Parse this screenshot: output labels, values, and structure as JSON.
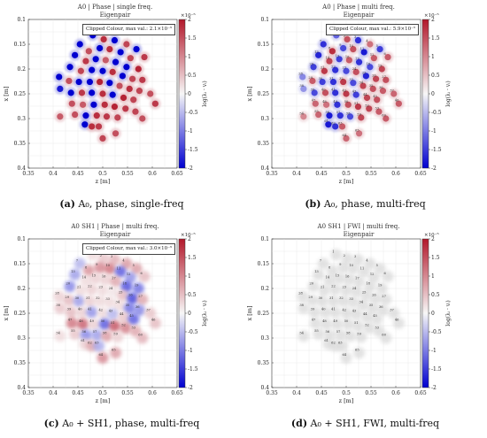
{
  "colors": {
    "high": "#b2182b",
    "mid": "#f7f7f7",
    "low": "#0000d0",
    "grid": "#e4e4e4"
  },
  "panels": [
    {
      "title1": "A0 | Phase | single freq.",
      "title2": "Eigenpair",
      "clipped": "Clipped Colour, max val.: 2.1×10⁻⁵",
      "caption_letter": "(a)",
      "caption_text": "A₀, phase, single-freq",
      "cbar_exponent": "×10⁻⁵",
      "cbar_label": "log(λᵢ · vᵢ)",
      "show_numbers": false
    },
    {
      "title1": "A0 | Phase | multi freq.",
      "title2": "Eigenpair",
      "clipped": "Clipped Colour, max val.: 5.9×10⁻⁵",
      "caption_letter": "(b)",
      "caption_text": "A₀, phase, multi-freq",
      "cbar_exponent": "×10⁻⁵",
      "cbar_label": "log(λᵢ · vᵢ)",
      "show_numbers": true
    },
    {
      "title1": "A0 SH1 | Phase | multi freq.",
      "title2": "Eigenpair",
      "clipped": "Clipped Colour, max val.: 3.0×10⁻⁵",
      "caption_letter": "(c)",
      "caption_text": "A₀ + SH1, phase, multi-freq",
      "cbar_exponent": "×10⁻⁵",
      "cbar_label": "log(λᵢ · vᵢ)",
      "show_numbers": true
    },
    {
      "title1": "A0 SH1 | FWI | multi freq.",
      "title2": "Eigenpair",
      "clipped": "",
      "caption_letter": "(d)",
      "caption_text": "A₀ + SH1, FWI, multi-freq",
      "cbar_exponent": "×10⁻⁵",
      "cbar_label": "log(λᵢ · vᵢ)",
      "show_numbers": true
    }
  ],
  "chart_data": {
    "type": "scatter",
    "xlabel": "z [m]",
    "ylabel": "x [m]",
    "xlim": [
      0.35,
      0.65
    ],
    "ylim": [
      0.1,
      0.4
    ],
    "x_ticks": [
      "0.35",
      "0.4",
      "0.45",
      "0.5",
      "0.55",
      "0.6",
      "0.65"
    ],
    "y_ticks": [
      "0.1",
      "0.15",
      "0.2",
      "0.25",
      "0.3",
      "0.35",
      "0.4"
    ],
    "cbar_ticks": [
      "2",
      "1.5",
      "1",
      "0.5",
      "0",
      "-0.5",
      "-1",
      "-1.5",
      "-2"
    ],
    "cbar_range": [
      -2,
      2
    ],
    "sensors": [
      {
        "id": "1",
        "z": 0.48,
        "x": 0.132
      },
      {
        "id": "2",
        "z": 0.502,
        "x": 0.14
      },
      {
        "id": "3",
        "z": 0.524,
        "x": 0.142
      },
      {
        "id": "4",
        "z": 0.548,
        "x": 0.15
      },
      {
        "id": "5",
        "z": 0.568,
        "x": 0.16
      },
      {
        "id": "6",
        "z": 0.584,
        "x": 0.176
      },
      {
        "id": "7",
        "z": 0.454,
        "x": 0.15
      },
      {
        "id": "8",
        "z": 0.472,
        "x": 0.164
      },
      {
        "id": "9",
        "z": 0.494,
        "x": 0.158
      },
      {
        "id": "10",
        "z": 0.514,
        "x": 0.16
      },
      {
        "id": "11",
        "z": 0.536,
        "x": 0.166
      },
      {
        "id": "12",
        "z": 0.556,
        "x": 0.178
      },
      {
        "id": "13",
        "z": 0.444,
        "x": 0.172
      },
      {
        "id": "14",
        "z": 0.466,
        "x": 0.184
      },
      {
        "id": "15",
        "z": 0.486,
        "x": 0.18
      },
      {
        "id": "16",
        "z": 0.506,
        "x": 0.182
      },
      {
        "id": "17",
        "z": 0.526,
        "x": 0.186
      },
      {
        "id": "18",
        "z": 0.548,
        "x": 0.196
      },
      {
        "id": "19",
        "z": 0.572,
        "x": 0.2
      },
      {
        "id": "20",
        "z": 0.434,
        "x": 0.196
      },
      {
        "id": "21",
        "z": 0.456,
        "x": 0.204
      },
      {
        "id": "22",
        "z": 0.478,
        "x": 0.202
      },
      {
        "id": "23",
        "z": 0.5,
        "x": 0.204
      },
      {
        "id": "24",
        "z": 0.52,
        "x": 0.206
      },
      {
        "id": "25",
        "z": 0.54,
        "x": 0.214
      },
      {
        "id": "26",
        "z": 0.56,
        "x": 0.22
      },
      {
        "id": "27",
        "z": 0.58,
        "x": 0.222
      },
      {
        "id": "28",
        "z": 0.412,
        "x": 0.216
      },
      {
        "id": "29",
        "z": 0.432,
        "x": 0.224
      },
      {
        "id": "30",
        "z": 0.452,
        "x": 0.226
      },
      {
        "id": "31",
        "z": 0.474,
        "x": 0.226
      },
      {
        "id": "32",
        "z": 0.494,
        "x": 0.226
      },
      {
        "id": "33",
        "z": 0.514,
        "x": 0.228
      },
      {
        "id": "34",
        "z": 0.534,
        "x": 0.234
      },
      {
        "id": "35",
        "z": 0.554,
        "x": 0.24
      },
      {
        "id": "36",
        "z": 0.574,
        "x": 0.244
      },
      {
        "id": "37",
        "z": 0.596,
        "x": 0.25
      },
      {
        "id": "38",
        "z": 0.414,
        "x": 0.24
      },
      {
        "id": "39",
        "z": 0.436,
        "x": 0.248
      },
      {
        "id": "40",
        "z": 0.458,
        "x": 0.248
      },
      {
        "id": "41",
        "z": 0.478,
        "x": 0.248
      },
      {
        "id": "42",
        "z": 0.5,
        "x": 0.25
      },
      {
        "id": "43",
        "z": 0.52,
        "x": 0.252
      },
      {
        "id": "44",
        "z": 0.542,
        "x": 0.258
      },
      {
        "id": "45",
        "z": 0.562,
        "x": 0.262
      },
      {
        "id": "46",
        "z": 0.606,
        "x": 0.27
      },
      {
        "id": "47",
        "z": 0.438,
        "x": 0.27
      },
      {
        "id": "48",
        "z": 0.46,
        "x": 0.272
      },
      {
        "id": "49",
        "z": 0.482,
        "x": 0.272
      },
      {
        "id": "50",
        "z": 0.504,
        "x": 0.272
      },
      {
        "id": "51",
        "z": 0.524,
        "x": 0.276
      },
      {
        "id": "52",
        "z": 0.546,
        "x": 0.28
      },
      {
        "id": "53",
        "z": 0.566,
        "x": 0.286
      },
      {
        "id": "54",
        "z": 0.414,
        "x": 0.296
      },
      {
        "id": "55",
        "z": 0.444,
        "x": 0.292
      },
      {
        "id": "56",
        "z": 0.466,
        "x": 0.294
      },
      {
        "id": "57",
        "z": 0.488,
        "x": 0.294
      },
      {
        "id": "58",
        "z": 0.508,
        "x": 0.296
      },
      {
        "id": "59",
        "z": 0.53,
        "x": 0.298
      },
      {
        "id": "60",
        "z": 0.58,
        "x": 0.3
      },
      {
        "id": "61",
        "z": 0.464,
        "x": 0.312
      },
      {
        "id": "62",
        "z": 0.478,
        "x": 0.316
      },
      {
        "id": "63",
        "z": 0.492,
        "x": 0.316
      },
      {
        "id": "64",
        "z": 0.5,
        "x": 0.34
      },
      {
        "id": "65",
        "z": 0.526,
        "x": 0.33
      }
    ],
    "panel_values": {
      "a": [
        -2,
        1.8,
        -2,
        1.6,
        -2,
        1.7,
        -2,
        1.5,
        -2,
        1.8,
        -2,
        1.6,
        -2,
        1.7,
        -2,
        1.4,
        -2,
        -2,
        1.9,
        -2,
        1.6,
        -2,
        -2,
        1.8,
        -2,
        1.6,
        1.7,
        -2,
        1.5,
        -2,
        -2,
        1.9,
        -2,
        1.5,
        1.8,
        1.6,
        1.5,
        -1.8,
        -2,
        1.7,
        -2,
        1.8,
        -2,
        1.9,
        1.6,
        1.7,
        1.5,
        1.4,
        -2,
        1.8,
        1.9,
        1.7,
        1.6,
        1.4,
        1.5,
        -2,
        1.8,
        1.7,
        1.6,
        1.5,
        -2,
        1.8,
        1.7,
        1.6,
        1.5
      ],
      "b": [
        -1.2,
        1.5,
        -1.6,
        1.2,
        -1.5,
        1.4,
        -1.6,
        1.8,
        -1.4,
        1.5,
        -1.8,
        1.4,
        -1.7,
        1.6,
        -1.5,
        1.4,
        -1.6,
        -1.4,
        1.6,
        -1.5,
        1.7,
        -1.6,
        -1.4,
        1.5,
        -1.7,
        1.6,
        1.5,
        -0.9,
        1.4,
        -1.5,
        -1.6,
        1.7,
        -1.4,
        1.6,
        1.5,
        1.4,
        1.3,
        -0.8,
        -1.4,
        1.5,
        -1.6,
        1.7,
        -1.5,
        1.6,
        1.5,
        1.4,
        1.3,
        1.2,
        -1.6,
        1.5,
        1.7,
        1.6,
        1.4,
        1.0,
        1.3,
        -1.8,
        -1.6,
        -1.4,
        1.6,
        1.4,
        -1.8,
        -1.6,
        1.4,
        1.3,
        1.2
      ],
      "c": [
        0.3,
        0.5,
        0.7,
        0.9,
        0.9,
        0.6,
        -0.6,
        1.0,
        1.1,
        1.3,
        -1.4,
        -0.9,
        -0.8,
        0.3,
        0.4,
        0.4,
        0.8,
        -1.5,
        -1.2,
        -1.0,
        0.3,
        0.4,
        0.3,
        0.2,
        0.6,
        -1.6,
        0.8,
        0.4,
        0.6,
        -0.8,
        0.4,
        0.3,
        0.3,
        0.3,
        -1.2,
        -1.0,
        0.5,
        0.5,
        0.6,
        0.4,
        -0.9,
        0.3,
        -0.6,
        0.5,
        -1.4,
        0.6,
        1.3,
        1.5,
        0.4,
        -1.4,
        1.6,
        1.2,
        0.8,
        0.3,
        0.5,
        -1.0,
        -0.8,
        0.9,
        0.4,
        0.7,
        0.4,
        0.8,
        -0.7,
        1.1,
        0.9
      ],
      "d": [
        0.1,
        0.1,
        0.1,
        0.1,
        0.1,
        0.1,
        0.1,
        0.1,
        0.1,
        0.1,
        0.1,
        0.1,
        0.1,
        0.1,
        0.1,
        0.1,
        0.1,
        0.1,
        0.1,
        0.1,
        0.1,
        0.1,
        0.1,
        0.1,
        0.1,
        0.1,
        0.1,
        0.1,
        0.1,
        0.1,
        0.1,
        0.1,
        0.1,
        0.1,
        0.1,
        0.1,
        0.1,
        0.1,
        0.1,
        0.1,
        0.1,
        0.1,
        0.1,
        0.1,
        0.1,
        0.1,
        0.1,
        0.1,
        0.1,
        0.1,
        0.1,
        0.1,
        0.1,
        0.1,
        0.1,
        0.1,
        0.1,
        0.1,
        0.1,
        0.1,
        0.1,
        0.1,
        0.1,
        0.1,
        0.1
      ]
    },
    "panel_marker_mode": {
      "a": "dots",
      "b": "dots",
      "c": "blobs",
      "d": "blobs"
    }
  }
}
